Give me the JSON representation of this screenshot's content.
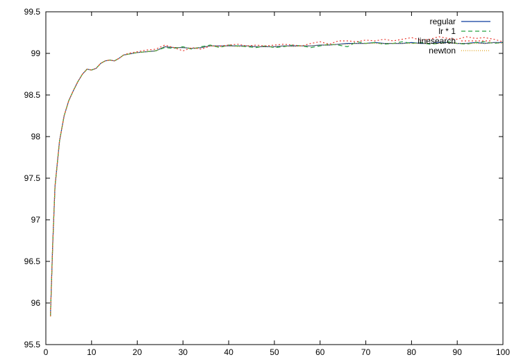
{
  "chart_data": {
    "type": "line",
    "title": "",
    "xlabel": "",
    "ylabel": "",
    "xlim": [
      0,
      100
    ],
    "ylim": [
      95.5,
      99.5
    ],
    "xticks": [
      "0",
      "10",
      "20",
      "30",
      "40",
      "50",
      "60",
      "70",
      "80",
      "90",
      "100"
    ],
    "yticks": [
      "95.5",
      "96",
      "96.5",
      "97",
      "97.5",
      "98",
      "98.5",
      "99",
      "99.5"
    ],
    "grid": false,
    "legend_position": "top-right",
    "x": [
      1,
      1.5,
      2,
      3,
      4,
      5,
      6,
      7,
      8,
      9,
      10,
      11,
      12,
      13,
      14,
      15,
      16,
      17,
      18,
      19,
      20,
      22,
      24,
      26,
      28,
      30,
      32,
      34,
      36,
      38,
      40,
      42,
      44,
      46,
      48,
      50,
      52,
      54,
      56,
      58,
      60,
      62,
      64,
      66,
      68,
      70,
      72,
      74,
      76,
      78,
      80,
      82,
      84,
      86,
      88,
      90,
      92,
      94,
      96,
      98,
      100
    ],
    "series": [
      {
        "name": "regular",
        "color": "#0b3c9e",
        "dash": "solid",
        "values": [
          95.84,
          96.7,
          97.4,
          97.95,
          98.25,
          98.43,
          98.55,
          98.66,
          98.75,
          98.81,
          98.8,
          98.82,
          98.88,
          98.91,
          98.92,
          98.91,
          98.94,
          98.98,
          98.99,
          99.0,
          99.01,
          99.02,
          99.03,
          99.08,
          99.07,
          99.07,
          99.06,
          99.07,
          99.09,
          99.09,
          99.09,
          99.09,
          99.09,
          99.08,
          99.08,
          99.08,
          99.09,
          99.09,
          99.09,
          99.09,
          99.1,
          99.1,
          99.11,
          99.12,
          99.12,
          99.12,
          99.13,
          99.12,
          99.12,
          99.12,
          99.13,
          99.12,
          99.12,
          99.13,
          99.13,
          99.12,
          99.12,
          99.13,
          99.12,
          99.13,
          99.13
        ]
      },
      {
        "name": "lr * 1",
        "color": "#25a042",
        "dash": "6,4",
        "values": [
          95.84,
          96.7,
          97.4,
          97.95,
          98.25,
          98.43,
          98.55,
          98.66,
          98.75,
          98.81,
          98.8,
          98.82,
          98.88,
          98.91,
          98.92,
          98.91,
          98.94,
          98.98,
          98.99,
          99.0,
          99.01,
          99.02,
          99.03,
          99.07,
          99.06,
          99.08,
          99.05,
          99.08,
          99.1,
          99.07,
          99.1,
          99.09,
          99.08,
          99.07,
          99.09,
          99.07,
          99.08,
          99.1,
          99.09,
          99.07,
          99.09,
          99.11,
          99.1,
          99.08,
          99.14,
          99.12,
          99.13,
          99.11,
          99.12,
          99.14,
          99.12,
          99.13,
          99.11,
          99.12,
          99.14,
          99.12,
          99.11,
          99.13,
          99.14,
          99.12,
          99.13
        ]
      },
      {
        "name": "linesearch",
        "color": "#e8352a",
        "dash": "2,3",
        "values": [
          95.84,
          96.7,
          97.4,
          97.95,
          98.25,
          98.43,
          98.55,
          98.66,
          98.75,
          98.81,
          98.8,
          98.82,
          98.88,
          98.91,
          98.92,
          98.91,
          98.94,
          98.98,
          99.0,
          99.01,
          99.02,
          99.04,
          99.05,
          99.1,
          99.07,
          99.03,
          99.07,
          99.05,
          99.09,
          99.09,
          99.1,
          99.11,
          99.09,
          99.1,
          99.09,
          99.1,
          99.11,
          99.1,
          99.09,
          99.12,
          99.14,
          99.11,
          99.15,
          99.15,
          99.14,
          99.16,
          99.15,
          99.17,
          99.15,
          99.17,
          99.19,
          99.16,
          99.17,
          99.2,
          99.18,
          99.17,
          99.2,
          99.18,
          99.19,
          99.17,
          99.14
        ]
      },
      {
        "name": "newton",
        "color": "#e0a21b",
        "dash": "1,2",
        "values": [
          95.84,
          96.7,
          97.4,
          97.95,
          98.25,
          98.43,
          98.55,
          98.66,
          98.75,
          98.81,
          98.8,
          98.82,
          98.88,
          98.91,
          98.92,
          98.91,
          98.94,
          98.98,
          98.99,
          99.0,
          99.01,
          99.02,
          99.03,
          99.08,
          99.07,
          99.07,
          99.06,
          99.07,
          99.09,
          99.08,
          99.09,
          99.08,
          99.09,
          99.08,
          99.08,
          99.08,
          99.09,
          99.08,
          99.09,
          99.09,
          99.1,
          99.1,
          99.11,
          99.11,
          99.12,
          99.12,
          99.12,
          99.12,
          99.12,
          99.12,
          99.12,
          99.12,
          99.12,
          99.12,
          99.13,
          99.12,
          99.12,
          99.12,
          99.12,
          99.13,
          99.12
        ]
      }
    ]
  }
}
